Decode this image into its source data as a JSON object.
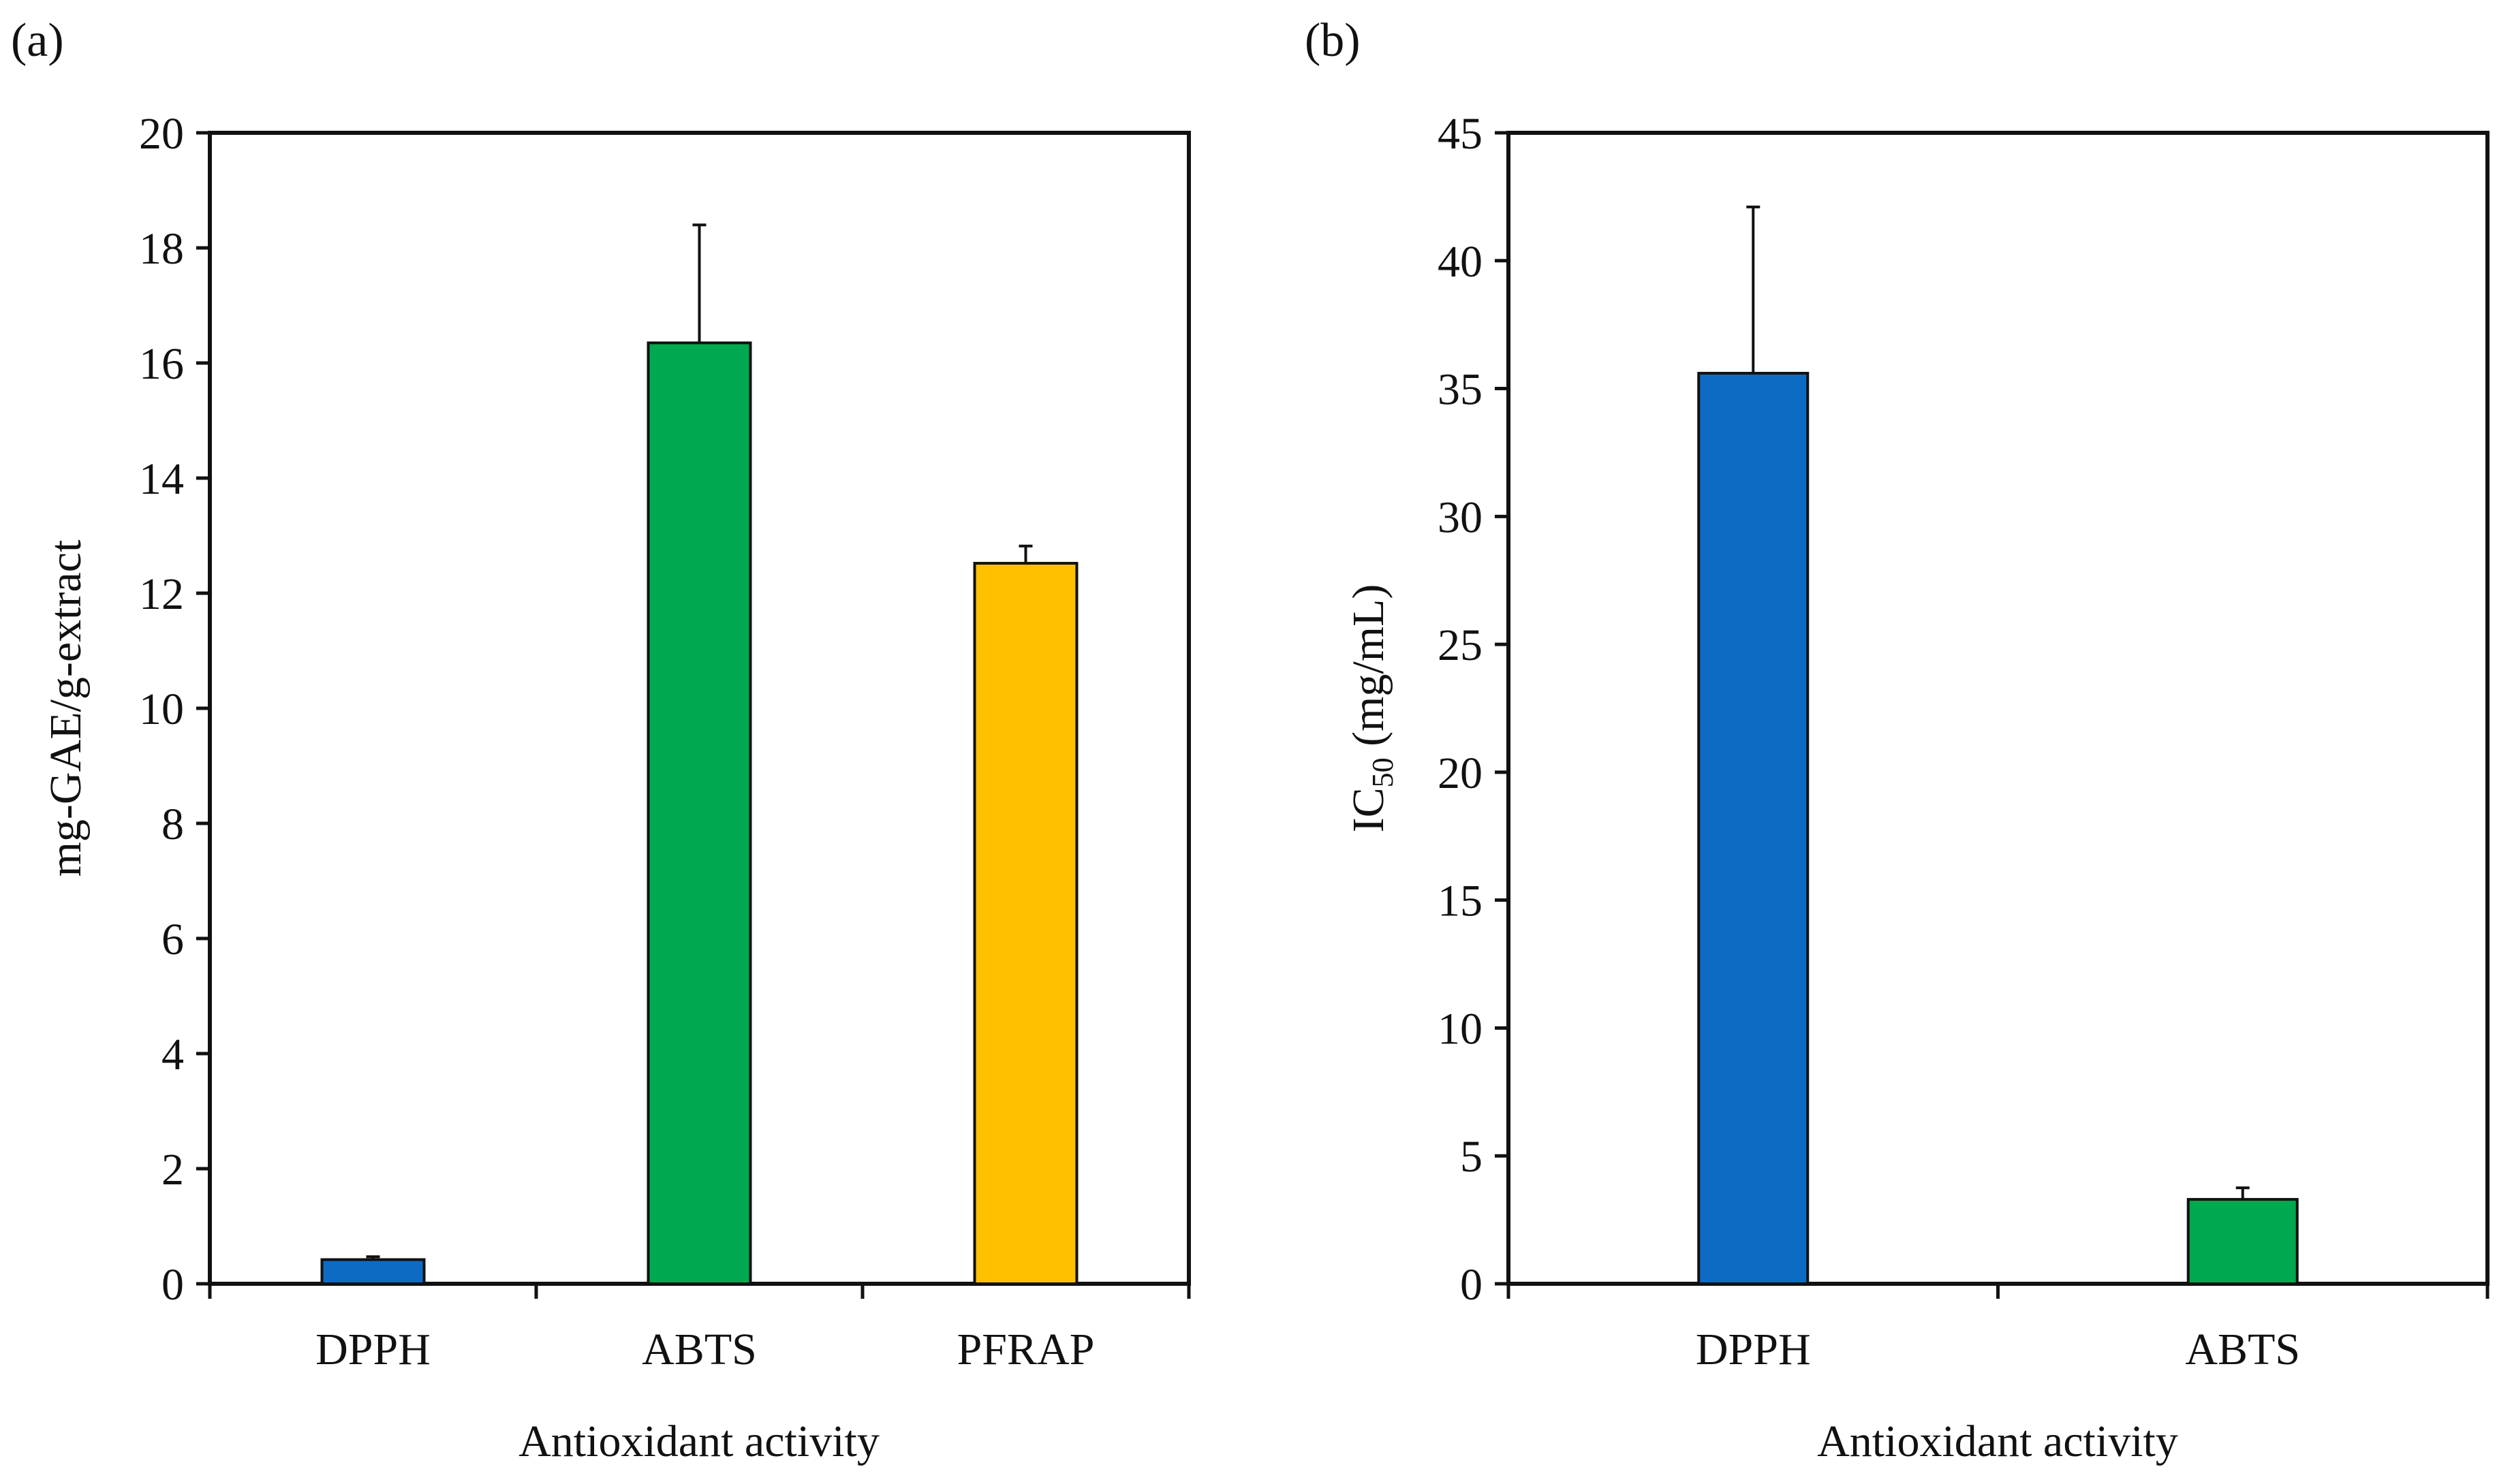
{
  "chart_data": [
    {
      "panel_label": "(a)",
      "type": "bar",
      "categories": [
        "DPPH",
        "ABTS",
        "PFRAP"
      ],
      "values": [
        0.42,
        16.35,
        12.52
      ],
      "errors": [
        0.05,
        2.05,
        0.3
      ],
      "bar_colors": [
        "#0e6bc4",
        "#00a94f",
        "#ffc000"
      ],
      "ylim": [
        0,
        20
      ],
      "yticks": [
        "0",
        "2",
        "4",
        "6",
        "8",
        "10",
        "12",
        "14",
        "16",
        "18",
        "20"
      ],
      "ylabel": "mg-GAE/g-extract",
      "xlabel": "Antioxidant activity",
      "grid": false
    },
    {
      "panel_label": "(b)",
      "type": "bar",
      "categories": [
        "DPPH",
        "ABTS"
      ],
      "values": [
        35.6,
        3.3
      ],
      "errors": [
        6.5,
        0.45
      ],
      "bar_colors": [
        "#0e6bc4",
        "#00a94f"
      ],
      "ylim": [
        0,
        45
      ],
      "yticks": [
        "0",
        "5",
        "10",
        "15",
        "20",
        "25",
        "30",
        "35",
        "40",
        "45"
      ],
      "ylabel_main": "IC",
      "ylabel_sub": "50",
      "ylabel_unit": " (mg/mL)",
      "xlabel": "Antioxidant activity",
      "grid": false
    }
  ]
}
